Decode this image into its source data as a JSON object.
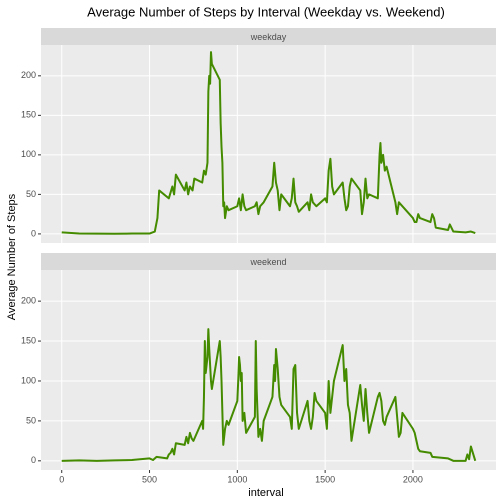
{
  "chart_data": {
    "type": "line",
    "title": "Average Number of Steps by Interval (Weekday vs. Weekend)",
    "xlabel": "interval",
    "ylabel": "Average Number of Steps",
    "xlim": [
      -118,
      2473
    ],
    "xticks": [
      0,
      500,
      1000,
      1500,
      2000
    ],
    "ylim": [
      -11.5,
      239
    ],
    "yticks": [
      0,
      50,
      100,
      150,
      200
    ],
    "grid": true,
    "series": [
      {
        "name": "weekday",
        "color": "#458b00",
        "x": [
          0,
          100,
          200,
          300,
          400,
          500,
          530,
          545,
          555,
          610,
          630,
          640,
          650,
          700,
          710,
          720,
          730,
          745,
          755,
          800,
          810,
          820,
          830,
          835,
          840,
          845,
          850,
          855,
          900,
          905,
          910,
          915,
          920,
          925,
          930,
          940,
          950,
          1000,
          1010,
          1020,
          1030,
          1040,
          1050,
          1100,
          1110,
          1120,
          1130,
          1150,
          1200,
          1210,
          1220,
          1230,
          1240,
          1250,
          1300,
          1310,
          1320,
          1330,
          1340,
          1350,
          1400,
          1410,
          1420,
          1430,
          1450,
          1500,
          1510,
          1520,
          1530,
          1540,
          1550,
          1600,
          1610,
          1620,
          1630,
          1640,
          1650,
          1700,
          1710,
          1720,
          1730,
          1740,
          1750,
          1800,
          1810,
          1815,
          1820,
          1830,
          1840,
          1850,
          1900,
          1910,
          1920,
          2000,
          2010,
          2020,
          2030,
          2040,
          2100,
          2110,
          2120,
          2130,
          2200,
          2210,
          2230,
          2300,
          2330,
          2355
        ],
        "values": [
          2,
          0.5,
          0.3,
          0.2,
          0.5,
          0.5,
          3,
          20,
          55,
          45,
          60,
          50,
          75,
          55,
          65,
          50,
          60,
          55,
          70,
          65,
          80,
          75,
          90,
          180,
          200,
          190,
          230,
          215,
          195,
          140,
          110,
          90,
          35,
          40,
          20,
          35,
          30,
          35,
          45,
          30,
          50,
          35,
          30,
          35,
          40,
          25,
          35,
          40,
          60,
          90,
          65,
          55,
          30,
          50,
          35,
          45,
          70,
          40,
          35,
          28,
          40,
          30,
          50,
          40,
          35,
          45,
          40,
          80,
          95,
          60,
          50,
          65,
          45,
          30,
          35,
          60,
          70,
          55,
          25,
          40,
          70,
          45,
          50,
          45,
          100,
          115,
          90,
          100,
          80,
          85,
          40,
          25,
          40,
          20,
          15,
          15,
          25,
          20,
          15,
          25,
          20,
          8,
          5,
          12,
          3,
          2,
          3,
          1
        ]
      },
      {
        "name": "weekend",
        "color": "#458b00",
        "x": [
          0,
          100,
          200,
          300,
          400,
          500,
          520,
          540,
          600,
          610,
          620,
          630,
          640,
          650,
          700,
          710,
          720,
          730,
          740,
          750,
          800,
          805,
          810,
          815,
          820,
          830,
          835,
          840,
          850,
          855,
          900,
          905,
          910,
          915,
          920,
          925,
          930,
          940,
          950,
          1000,
          1005,
          1010,
          1015,
          1020,
          1025,
          1030,
          1040,
          1050,
          1100,
          1105,
          1110,
          1115,
          1120,
          1130,
          1140,
          1150,
          1200,
          1210,
          1215,
          1220,
          1230,
          1240,
          1250,
          1300,
          1310,
          1320,
          1330,
          1340,
          1350,
          1400,
          1410,
          1420,
          1430,
          1440,
          1450,
          1500,
          1510,
          1520,
          1530,
          1540,
          1550,
          1600,
          1610,
          1620,
          1630,
          1640,
          1650,
          1700,
          1710,
          1720,
          1730,
          1740,
          1750,
          1800,
          1810,
          1820,
          1830,
          1840,
          1850,
          1900,
          1910,
          1920,
          1930,
          1940,
          2000,
          2010,
          2020,
          2030,
          2040,
          2100,
          2110,
          2200,
          2230,
          2300,
          2310,
          2320,
          2330,
          2355
        ],
        "values": [
          0,
          0.5,
          0,
          0.5,
          1,
          3,
          1,
          5,
          3,
          8,
          10,
          15,
          8,
          22,
          20,
          30,
          22,
          35,
          28,
          25,
          50,
          40,
          80,
          150,
          110,
          130,
          165,
          140,
          100,
          90,
          150,
          130,
          100,
          60,
          20,
          30,
          40,
          50,
          45,
          75,
          100,
          130,
          120,
          100,
          110,
          50,
          60,
          35,
          55,
          150,
          90,
          60,
          30,
          40,
          25,
          50,
          80,
          120,
          100,
          140,
          115,
          80,
          70,
          55,
          40,
          115,
          120,
          60,
          40,
          75,
          50,
          40,
          55,
          85,
          75,
          60,
          40,
          100,
          60,
          80,
          100,
          145,
          100,
          115,
          70,
          60,
          25,
          95,
          70,
          50,
          90,
          60,
          35,
          80,
          85,
          75,
          50,
          45,
          55,
          80,
          55,
          30,
          35,
          60,
          40,
          35,
          25,
          15,
          12,
          10,
          5,
          3,
          0,
          0,
          8,
          2,
          18,
          0
        ]
      }
    ]
  }
}
